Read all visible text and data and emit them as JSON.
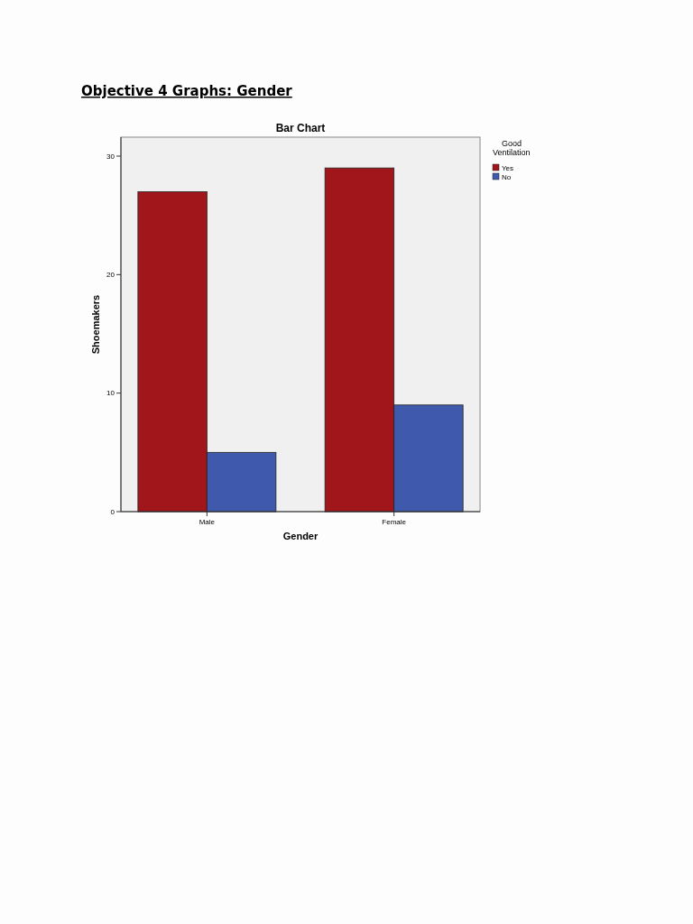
{
  "chart_data": {
    "type": "bar",
    "title": "Objective 4 Graphs: Gender",
    "subtitle": "Bar Chart",
    "xlabel": "Gender",
    "ylabel": "Shoemakers",
    "legend_title": "Good Ventilation",
    "categories": [
      "Male",
      "Female"
    ],
    "series": [
      {
        "name": "Yes",
        "color": "#a0161b",
        "values": [
          27,
          29
        ]
      },
      {
        "name": "No",
        "color": "#3f5aad",
        "values": [
          5,
          9
        ]
      }
    ],
    "ylim": [
      0,
      31.6
    ],
    "yticks": [
      0,
      10,
      20,
      30
    ],
    "grid": false,
    "legend": "top right"
  }
}
